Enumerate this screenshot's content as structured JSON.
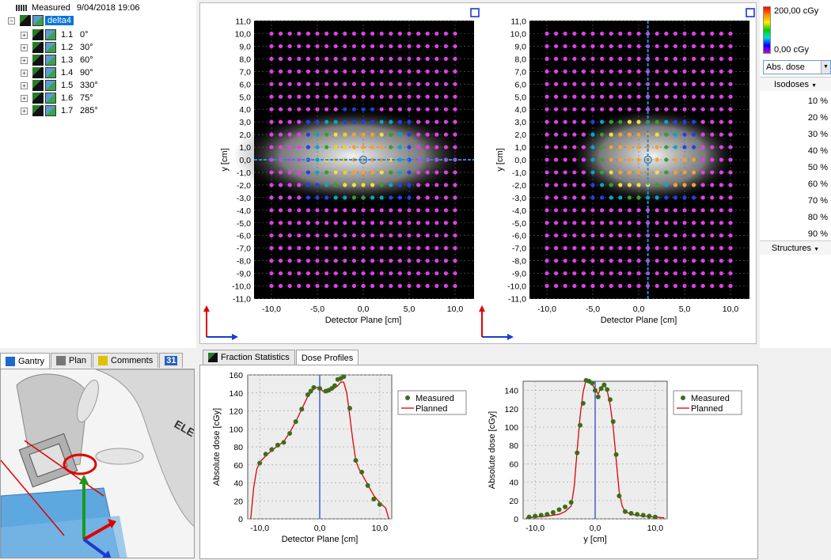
{
  "tree": {
    "measured_label": "Measured",
    "measured_date": "9/04/2018 19:06",
    "plan_name": "delta4",
    "beams": [
      {
        "id": "1.1",
        "angle": "0°"
      },
      {
        "id": "1.2",
        "angle": "30°"
      },
      {
        "id": "1.3",
        "angle": "60°"
      },
      {
        "id": "1.4",
        "angle": "90°"
      },
      {
        "id": "1.5",
        "angle": "330°"
      },
      {
        "id": "1.6",
        "angle": "75°"
      },
      {
        "id": "1.7",
        "angle": "285°"
      }
    ]
  },
  "gantry_tabs": [
    {
      "label": "Gantry",
      "active": true
    },
    {
      "label": "Plan",
      "active": false
    },
    {
      "label": "Comments",
      "active": false
    },
    {
      "label": "31",
      "active": false
    }
  ],
  "gantry_view": {
    "room_text": "ELE"
  },
  "dose_maps": [
    {
      "xlabel": "Detector Plane [cm]",
      "ylabel": "y [cm]",
      "x_ticks": [
        "-10,0",
        "-5,0",
        "0,0",
        "5,0",
        "10,0"
      ],
      "y_ticks": [
        "11,0",
        "10,0",
        "9,0",
        "8,0",
        "7,0",
        "6,0",
        "5,0",
        "4,0",
        "3,0",
        "2,0",
        "1,0",
        "0,0",
        "-1,0",
        "-2,0",
        "-3,0",
        "-4,0",
        "-5,0",
        "-6,0",
        "-7,0",
        "-8,0",
        "-9,0",
        "-10,0",
        "-11,0"
      ],
      "crosshair_axis": "horizontal",
      "crosshair_value": 0
    },
    {
      "xlabel": "Detector Plane [cm]",
      "ylabel": "y [cm]",
      "x_ticks": [
        "-10,0",
        "-5,0",
        "0,0",
        "5,0",
        "10,0"
      ],
      "y_ticks": [
        "11,0",
        "10,0",
        "9,0",
        "8,0",
        "7,0",
        "6,0",
        "5,0",
        "4,0",
        "3,0",
        "2,0",
        "1,0",
        "0,0",
        "-1,0",
        "-2,0",
        "-3,0",
        "-4,0",
        "-5,0",
        "-6,0",
        "-7,0",
        "-8,0",
        "-9,0",
        "-10,0",
        "-11,0"
      ],
      "crosshair_axis": "vertical",
      "crosshair_value": 1
    }
  ],
  "legend": {
    "dose_max": "200,00 cGy",
    "dose_min": "0,00 cGy",
    "dose_mode": "Abs. dose",
    "isodoses_header": "Isodoses",
    "isodoses": [
      "10 %",
      "20 %",
      "30 %",
      "40 %",
      "50 %",
      "60 %",
      "70 %",
      "80 %",
      "90 %"
    ],
    "structures_header": "Structures"
  },
  "profile_tabs": [
    {
      "label": "Fraction Statistics",
      "active": false
    },
    {
      "label": "Dose Profiles",
      "active": true
    }
  ],
  "chart_data": [
    {
      "type": "line",
      "xlabel": "Detector Plane [cm]",
      "ylabel": "Absolute dose [cGy]",
      "xlim": [
        -12,
        12
      ],
      "ylim": [
        0,
        160
      ],
      "x_ticks": [
        "-10,0",
        "0,0",
        "10,0"
      ],
      "x_tick_values": [
        -10,
        0,
        10
      ],
      "y_ticks": [
        "0",
        "20",
        "40",
        "60",
        "80",
        "100",
        "120",
        "140",
        "160"
      ],
      "y_tick_values": [
        0,
        20,
        40,
        60,
        80,
        100,
        120,
        140,
        160
      ],
      "cursor_x": 0,
      "legend": {
        "measured": "Measured",
        "planned": "Planned"
      },
      "series": [
        {
          "name": "Measured",
          "style": "points",
          "color": "#3a6e1c",
          "x": [
            -10.0,
            -9.0,
            -8.0,
            -7.0,
            -6.0,
            -5.0,
            -4.0,
            -3.0,
            -2.0,
            -1.5,
            -1.0,
            0.0,
            1.0,
            1.5,
            2.0,
            2.5,
            3.0,
            3.5,
            4.0,
            5.0,
            6.0,
            7.0,
            8.0,
            9.0,
            10.0
          ],
          "y": [
            62,
            72,
            77,
            82,
            85,
            95,
            108,
            122,
            138,
            142,
            146,
            145,
            142,
            143,
            145,
            148,
            155,
            156,
            158,
            123,
            65,
            52,
            37,
            22,
            16
          ]
        },
        {
          "name": "Planned",
          "style": "line",
          "color": "#e00000",
          "x": [
            -11.5,
            -11.0,
            -10.5,
            -10.0,
            -9.0,
            -8.0,
            -7.0,
            -6.0,
            -5.0,
            -4.0,
            -3.0,
            -2.0,
            -1.0,
            -0.5,
            0.0,
            0.5,
            1.0,
            2.0,
            3.0,
            3.5,
            4.0,
            4.5,
            5.0,
            5.5,
            6.0,
            6.5,
            7.0,
            8.0,
            9.0,
            10.0,
            11.0,
            11.5
          ],
          "y": [
            0,
            35,
            55,
            63,
            70,
            76,
            81,
            86,
            96,
            108,
            122,
            136,
            144,
            146,
            146,
            142,
            141,
            143,
            148,
            152,
            152,
            140,
            115,
            88,
            65,
            56,
            50,
            38,
            26,
            18,
            12,
            0
          ]
        }
      ]
    },
    {
      "type": "line",
      "xlabel": "y [cm]",
      "ylabel": "Absolute dose [cGy]",
      "xlim": [
        -12,
        12
      ],
      "ylim": [
        0,
        150
      ],
      "x_ticks": [
        "-10,0",
        "0,0",
        "10,0"
      ],
      "x_tick_values": [
        -10,
        0,
        10
      ],
      "y_ticks": [
        "0",
        "20",
        "40",
        "60",
        "80",
        "100",
        "120",
        "140"
      ],
      "y_tick_values": [
        0,
        20,
        40,
        60,
        80,
        100,
        120,
        140
      ],
      "cursor_x": 0,
      "legend": {
        "measured": "Measured",
        "planned": "Planned"
      },
      "series": [
        {
          "name": "Measured",
          "style": "points",
          "color": "#3a6e1c",
          "x": [
            -11.0,
            -10.0,
            -9.0,
            -8.0,
            -7.0,
            -6.0,
            -5.0,
            -4.0,
            -3.0,
            -2.5,
            -2.0,
            -1.5,
            -1.0,
            -0.5,
            0.0,
            0.5,
            1.0,
            1.5,
            2.0,
            2.5,
            3.0,
            3.5,
            4.0,
            5.0,
            6.0,
            7.0,
            8.0,
            9.0,
            10.0
          ],
          "y": [
            2,
            3,
            4,
            5,
            7,
            10,
            13,
            18,
            72,
            102,
            126,
            151,
            150,
            148,
            140,
            133,
            142,
            146,
            141,
            130,
            106,
            70,
            25,
            8,
            6,
            5,
            4,
            3,
            2
          ]
        },
        {
          "name": "Planned",
          "style": "line",
          "color": "#e00000",
          "x": [
            -11.5,
            -10.0,
            -8.0,
            -6.0,
            -5.0,
            -4.0,
            -3.5,
            -3.0,
            -2.5,
            -2.0,
            -1.5,
            -1.0,
            -0.5,
            0.0,
            0.5,
            1.0,
            1.5,
            2.0,
            2.5,
            3.0,
            3.5,
            4.0,
            4.5,
            5.0,
            6.0,
            8.0,
            10.0,
            11.5
          ],
          "y": [
            1,
            2,
            3,
            5,
            8,
            14,
            35,
            75,
            112,
            138,
            152,
            150,
            147,
            141,
            136,
            143,
            147,
            140,
            124,
            100,
            65,
            30,
            14,
            8,
            5,
            3,
            2,
            1
          ]
        }
      ]
    }
  ]
}
